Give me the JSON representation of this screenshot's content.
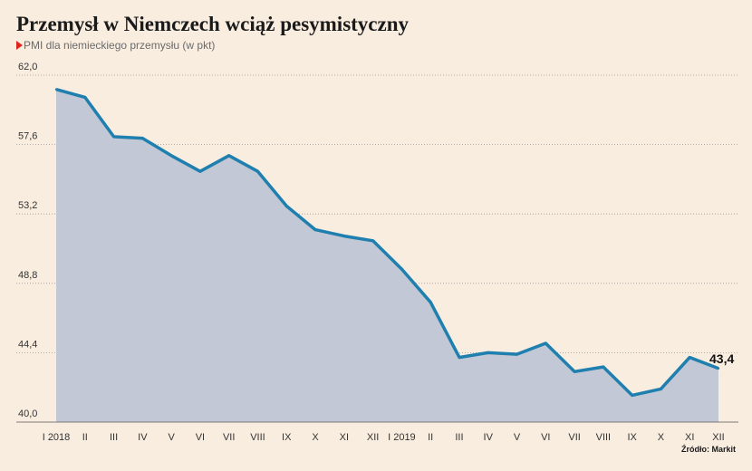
{
  "title": "Przemysł w Niemczech wciąż pesymistyczny",
  "subtitle": "PMI dla niemieckiego przemysłu (w pkt)",
  "source": "Źródło: Markit",
  "colors": {
    "background": "#f9ede0",
    "line": "#1f7fae",
    "area": "#c3c8d6",
    "marker": "#e0261b"
  },
  "chart_data": {
    "type": "area",
    "categories": [
      "I 2018",
      "II",
      "III",
      "IV",
      "V",
      "VI",
      "VII",
      "VIII",
      "IX",
      "X",
      "XI",
      "XII",
      "I 2019",
      "II",
      "III",
      "IV",
      "V",
      "VI",
      "VII",
      "VIII",
      "IX",
      "X",
      "XI",
      "XII"
    ],
    "values": [
      61.1,
      60.6,
      58.1,
      58.0,
      56.9,
      55.9,
      56.9,
      55.9,
      53.7,
      52.2,
      51.8,
      51.5,
      49.7,
      47.6,
      44.1,
      44.4,
      44.3,
      45.0,
      43.2,
      43.5,
      41.7,
      42.1,
      44.1,
      43.4
    ],
    "ylim": [
      40.0,
      62.0
    ],
    "yticks": [
      "40,0",
      "44,4",
      "48,8",
      "53,2",
      "57,6",
      "62,0"
    ],
    "ytick_values": [
      40.0,
      44.4,
      48.8,
      53.2,
      57.6,
      62.0
    ],
    "last_label": "43,4",
    "grid": true
  }
}
